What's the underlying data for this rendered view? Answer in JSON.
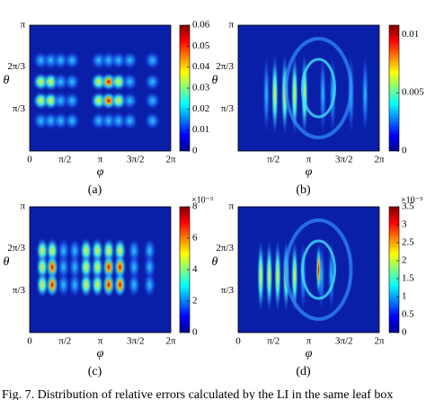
{
  "figure": {
    "panels": [
      {
        "caption": "(a)",
        "xlabel": "φ",
        "ylabel": "θ",
        "xticks": [
          "0",
          "π/2",
          "π",
          "3π/2",
          "2π"
        ],
        "yticks": [
          "π/3",
          "2π/3",
          "π"
        ],
        "colorbar": {
          "range": [
            0,
            0.06
          ],
          "ticks": [
            0,
            0.01,
            0.02,
            0.03,
            0.04,
            0.05,
            0.06
          ]
        }
      },
      {
        "caption": "(b)",
        "xlabel": "φ",
        "ylabel": "θ",
        "xticks": [
          "π/2",
          "π",
          "3π/2",
          "2π"
        ],
        "yticks": [
          "π/3",
          "2π/3",
          "π"
        ],
        "colorbar": {
          "range": [
            0,
            0.0108
          ],
          "ticks": [
            0,
            0.005,
            0.01
          ]
        }
      },
      {
        "caption": "(c)",
        "xlabel": "φ",
        "ylabel": "θ",
        "xticks": [
          "0",
          "π/2",
          "π",
          "3π/2",
          "2π"
        ],
        "yticks": [
          "π/3",
          "2π/3",
          "π"
        ],
        "colorbar": {
          "multiplier": "×10⁻³",
          "range": [
            0,
            8
          ],
          "ticks": [
            0,
            2,
            4,
            6,
            8
          ]
        }
      },
      {
        "caption": "(d)",
        "xlabel": "φ",
        "ylabel": "θ",
        "xticks": [
          "0",
          "π/2",
          "π",
          "3π/2",
          "2π"
        ],
        "yticks": [
          "π/3",
          "2π/3",
          "π"
        ],
        "colorbar": {
          "multiplier": "×10⁻³",
          "range": [
            0,
            3.5
          ],
          "ticks": [
            0,
            0.5,
            1,
            1.5,
            2,
            2.5,
            3,
            3.5
          ]
        }
      }
    ],
    "caption": "Fig. 7.   Distribution of relative errors calculated by the LI in the same leaf box"
  }
}
